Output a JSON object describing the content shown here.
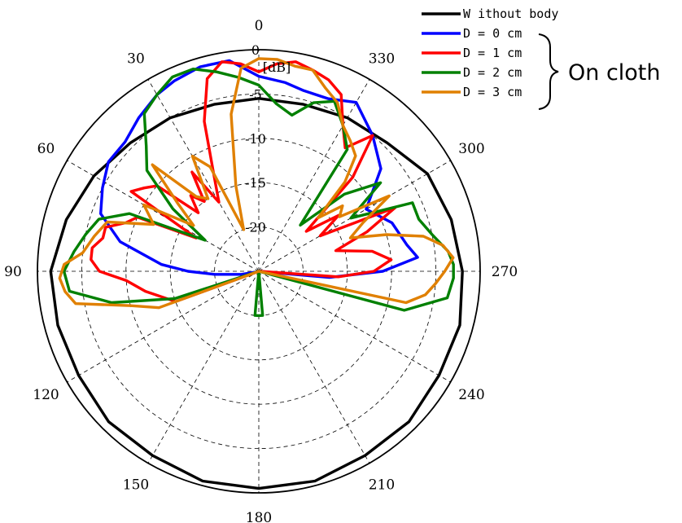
{
  "chart_data": {
    "type": "polar-line",
    "unit_label": "[dB]",
    "theta_direction": "counterclockwise",
    "theta_zero": "top",
    "angle_ticks": [
      "0",
      "30",
      "60",
      "90",
      "120",
      "150",
      "180",
      "210",
      "240",
      "270",
      "300",
      "330"
    ],
    "radial_ticks": [
      0,
      -5,
      -10,
      -15,
      -20
    ],
    "radial_tick_labels": [
      "0",
      "-5",
      "-10",
      "-15",
      "-20"
    ],
    "rlim": [
      -25,
      0
    ],
    "grid": true,
    "legend_position": "top-right",
    "annotation": {
      "label": "On cloth",
      "bracket": "right curly brace grouping D = 0 to D = 3 cm"
    },
    "series": [
      {
        "name": "W ithout body",
        "color": "#000000",
        "theta_deg": [
          0,
          15,
          30,
          45,
          60,
          75,
          90,
          105,
          120,
          135,
          150,
          165,
          180,
          195,
          210,
          225,
          240,
          255,
          270,
          285,
          300,
          315,
          330,
          345
        ],
        "r_db": [
          -5.5,
          -5.5,
          -5,
          -4.5,
          -3.5,
          -2.5,
          -1.5,
          -1.5,
          -1.5,
          -1,
          -1,
          -0.5,
          -0.5,
          -0.5,
          -1,
          -1,
          -1.5,
          -1.5,
          -2,
          -2.5,
          -3,
          -4.5,
          -5,
          -5.5
        ]
      },
      {
        "name": "D = 0 cm",
        "color": "#0000ff",
        "theta_deg": [
          0,
          8,
          16,
          24,
          30,
          38,
          46,
          54,
          62,
          70,
          78,
          86,
          90,
          94,
          100,
          110,
          120,
          140,
          160,
          180,
          200,
          220,
          240,
          260,
          265,
          270,
          275,
          280,
          290,
          300,
          310,
          320,
          330,
          338,
          346,
          352
        ],
        "r_db": [
          -3,
          -1,
          -1,
          -1.5,
          -2,
          -3,
          -4,
          -4,
          -5,
          -6,
          -9,
          -14,
          -17,
          -20,
          -23,
          -24.9,
          -25,
          -25,
          -25,
          -25,
          -25,
          -25,
          -25,
          -25,
          -17,
          -11,
          -7,
          -8,
          -9,
          -11,
          -7,
          -5,
          -3,
          -4,
          -4,
          -3.5
        ]
      },
      {
        "name": "D = 1 cm",
        "color": "#ff0000",
        "theta_deg": [
          0,
          5,
          10,
          15,
          20,
          25,
          30,
          34,
          38,
          42,
          46,
          50,
          54,
          58,
          62,
          66,
          70,
          74,
          78,
          82,
          86,
          90,
          94,
          100,
          110,
          120,
          140,
          160,
          180,
          200,
          220,
          240,
          260,
          266,
          270,
          275,
          280,
          285,
          290,
          295,
          300,
          305,
          310,
          315,
          320,
          325,
          330,
          335,
          340,
          345,
          350,
          355
        ],
        "r_db": [
          -2.5,
          -1.5,
          -1,
          -2.5,
          -7,
          -13,
          -16,
          -11.5,
          -15,
          -13.5,
          -15.5,
          -10,
          -9,
          -8,
          -17,
          -10,
          -9,
          -7,
          -7,
          -6,
          -6,
          -7,
          -10,
          -12,
          -15,
          -25,
          -25,
          -25,
          -25,
          -25,
          -25,
          -25,
          -25,
          -16,
          -12,
          -10,
          -12,
          -16,
          -12,
          -8,
          -17,
          -14,
          -18,
          -10,
          -5,
          -8,
          -6,
          -3,
          -2,
          -1.5,
          -1,
          -1.5
        ]
      },
      {
        "name": "D = 2 cm",
        "color": "#008000",
        "theta_deg": [
          0,
          6,
          12,
          18,
          24,
          30,
          36,
          42,
          48,
          54,
          60,
          66,
          72,
          78,
          84,
          90,
          96,
          102,
          108,
          120,
          140,
          160,
          175,
          180,
          185,
          200,
          220,
          240,
          255,
          262,
          268,
          272,
          276,
          282,
          288,
          294,
          300,
          306,
          312,
          318,
          324,
          330,
          336,
          342,
          348,
          354
        ],
        "r_db": [
          -4,
          -3,
          -2,
          -1,
          -1,
          -2,
          -3,
          -6,
          -8,
          -13,
          -18,
          -9,
          -6,
          -5,
          -4,
          -3,
          -3.5,
          -8,
          -15,
          -25,
          -25,
          -25,
          -20,
          -20,
          -20,
          -25,
          -25,
          -25,
          -8,
          -3.5,
          -3,
          -3,
          -3.5,
          -5,
          -6,
          -6,
          -13,
          -8,
          -12,
          -18,
          -8,
          -6,
          -4,
          -5,
          -7,
          -6
        ]
      },
      {
        "name": "D = 3 cm",
        "color": "#e08000",
        "theta_deg": [
          0,
          5,
          10,
          15,
          20,
          25,
          30,
          35,
          40,
          45,
          50,
          55,
          60,
          66,
          72,
          78,
          84,
          88,
          92,
          96,
          100,
          105,
          110,
          120,
          140,
          160,
          180,
          200,
          220,
          240,
          258,
          262,
          266,
          270,
          274,
          278,
          282,
          286,
          290,
          295,
          300,
          304,
          308,
          312,
          316,
          320,
          325,
          330,
          335,
          340,
          345,
          350,
          355
        ],
        "r_db": [
          -1,
          -2,
          -7,
          -15,
          -20,
          -12,
          -10,
          -15,
          -14,
          -8,
          -13,
          -16,
          -10,
          -12,
          -7,
          -6,
          -5,
          -3,
          -2.5,
          -3,
          -4,
          -10,
          -13,
          -25,
          -25,
          -25,
          -25,
          -25,
          -25,
          -25,
          -8,
          -6,
          -5,
          -4,
          -3,
          -4,
          -6,
          -10,
          -14,
          -12,
          -8,
          -14,
          -13,
          -16,
          -11,
          -8,
          -7,
          -6,
          -4,
          -3,
          -1.5,
          -1.5,
          -1
        ]
      }
    ]
  }
}
